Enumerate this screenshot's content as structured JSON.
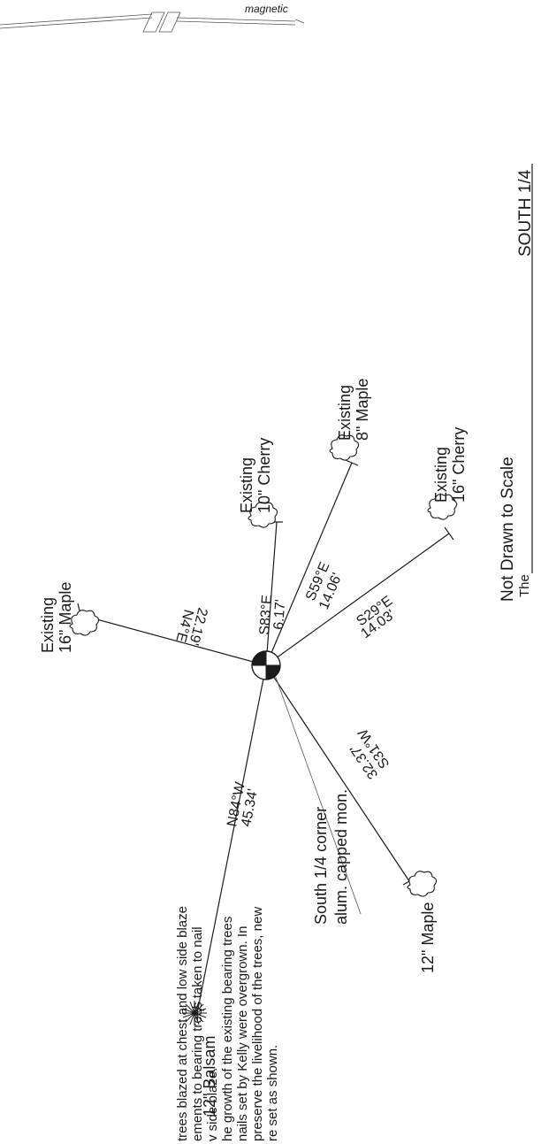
{
  "north_arrow": {
    "label": "magnetic"
  },
  "scale_note": "Not Drawn to Scale",
  "notes": [
    "trees blazed at chest and low side blaze",
    "ements to bearing trees taken to nail",
    "v side blaze.",
    "he growth of the existing bearing trees",
    "nails set by Kelly were overgrown. In",
    "preserve the livelihood of the trees, new",
    "re set as shown."
  ],
  "monument": {
    "label_line1": "South 1/4 corner",
    "label_line2": "alum. capped mon."
  },
  "bearing_trees": [
    {
      "id": "n4e",
      "status": "Existing",
      "tree": "16\" Maple",
      "bearing": "N4°E",
      "distance": "22.19'"
    },
    {
      "id": "s83e",
      "status": "Existing",
      "tree": "10\" Cherry",
      "bearing": "S83°E",
      "distance": "6.17'"
    },
    {
      "id": "s59e",
      "status": "Existing",
      "tree": "8\" Maple",
      "bearing": "S59°E",
      "distance": "14.06'"
    },
    {
      "id": "s29e",
      "status": "Existing",
      "tree": "16\" Cherry",
      "bearing": "S29°E",
      "distance": "14.03'"
    },
    {
      "id": "s31w",
      "status": "",
      "tree": "12\" Maple",
      "bearing": "S31°W",
      "distance": "32.37'"
    },
    {
      "id": "n84w",
      "status": "",
      "tree": "12\" Balsam",
      "bearing": "N84°W",
      "distance": "45.34'"
    }
  ],
  "title_block": {
    "prefix": "The",
    "corner": "SOUTH 1/4"
  }
}
